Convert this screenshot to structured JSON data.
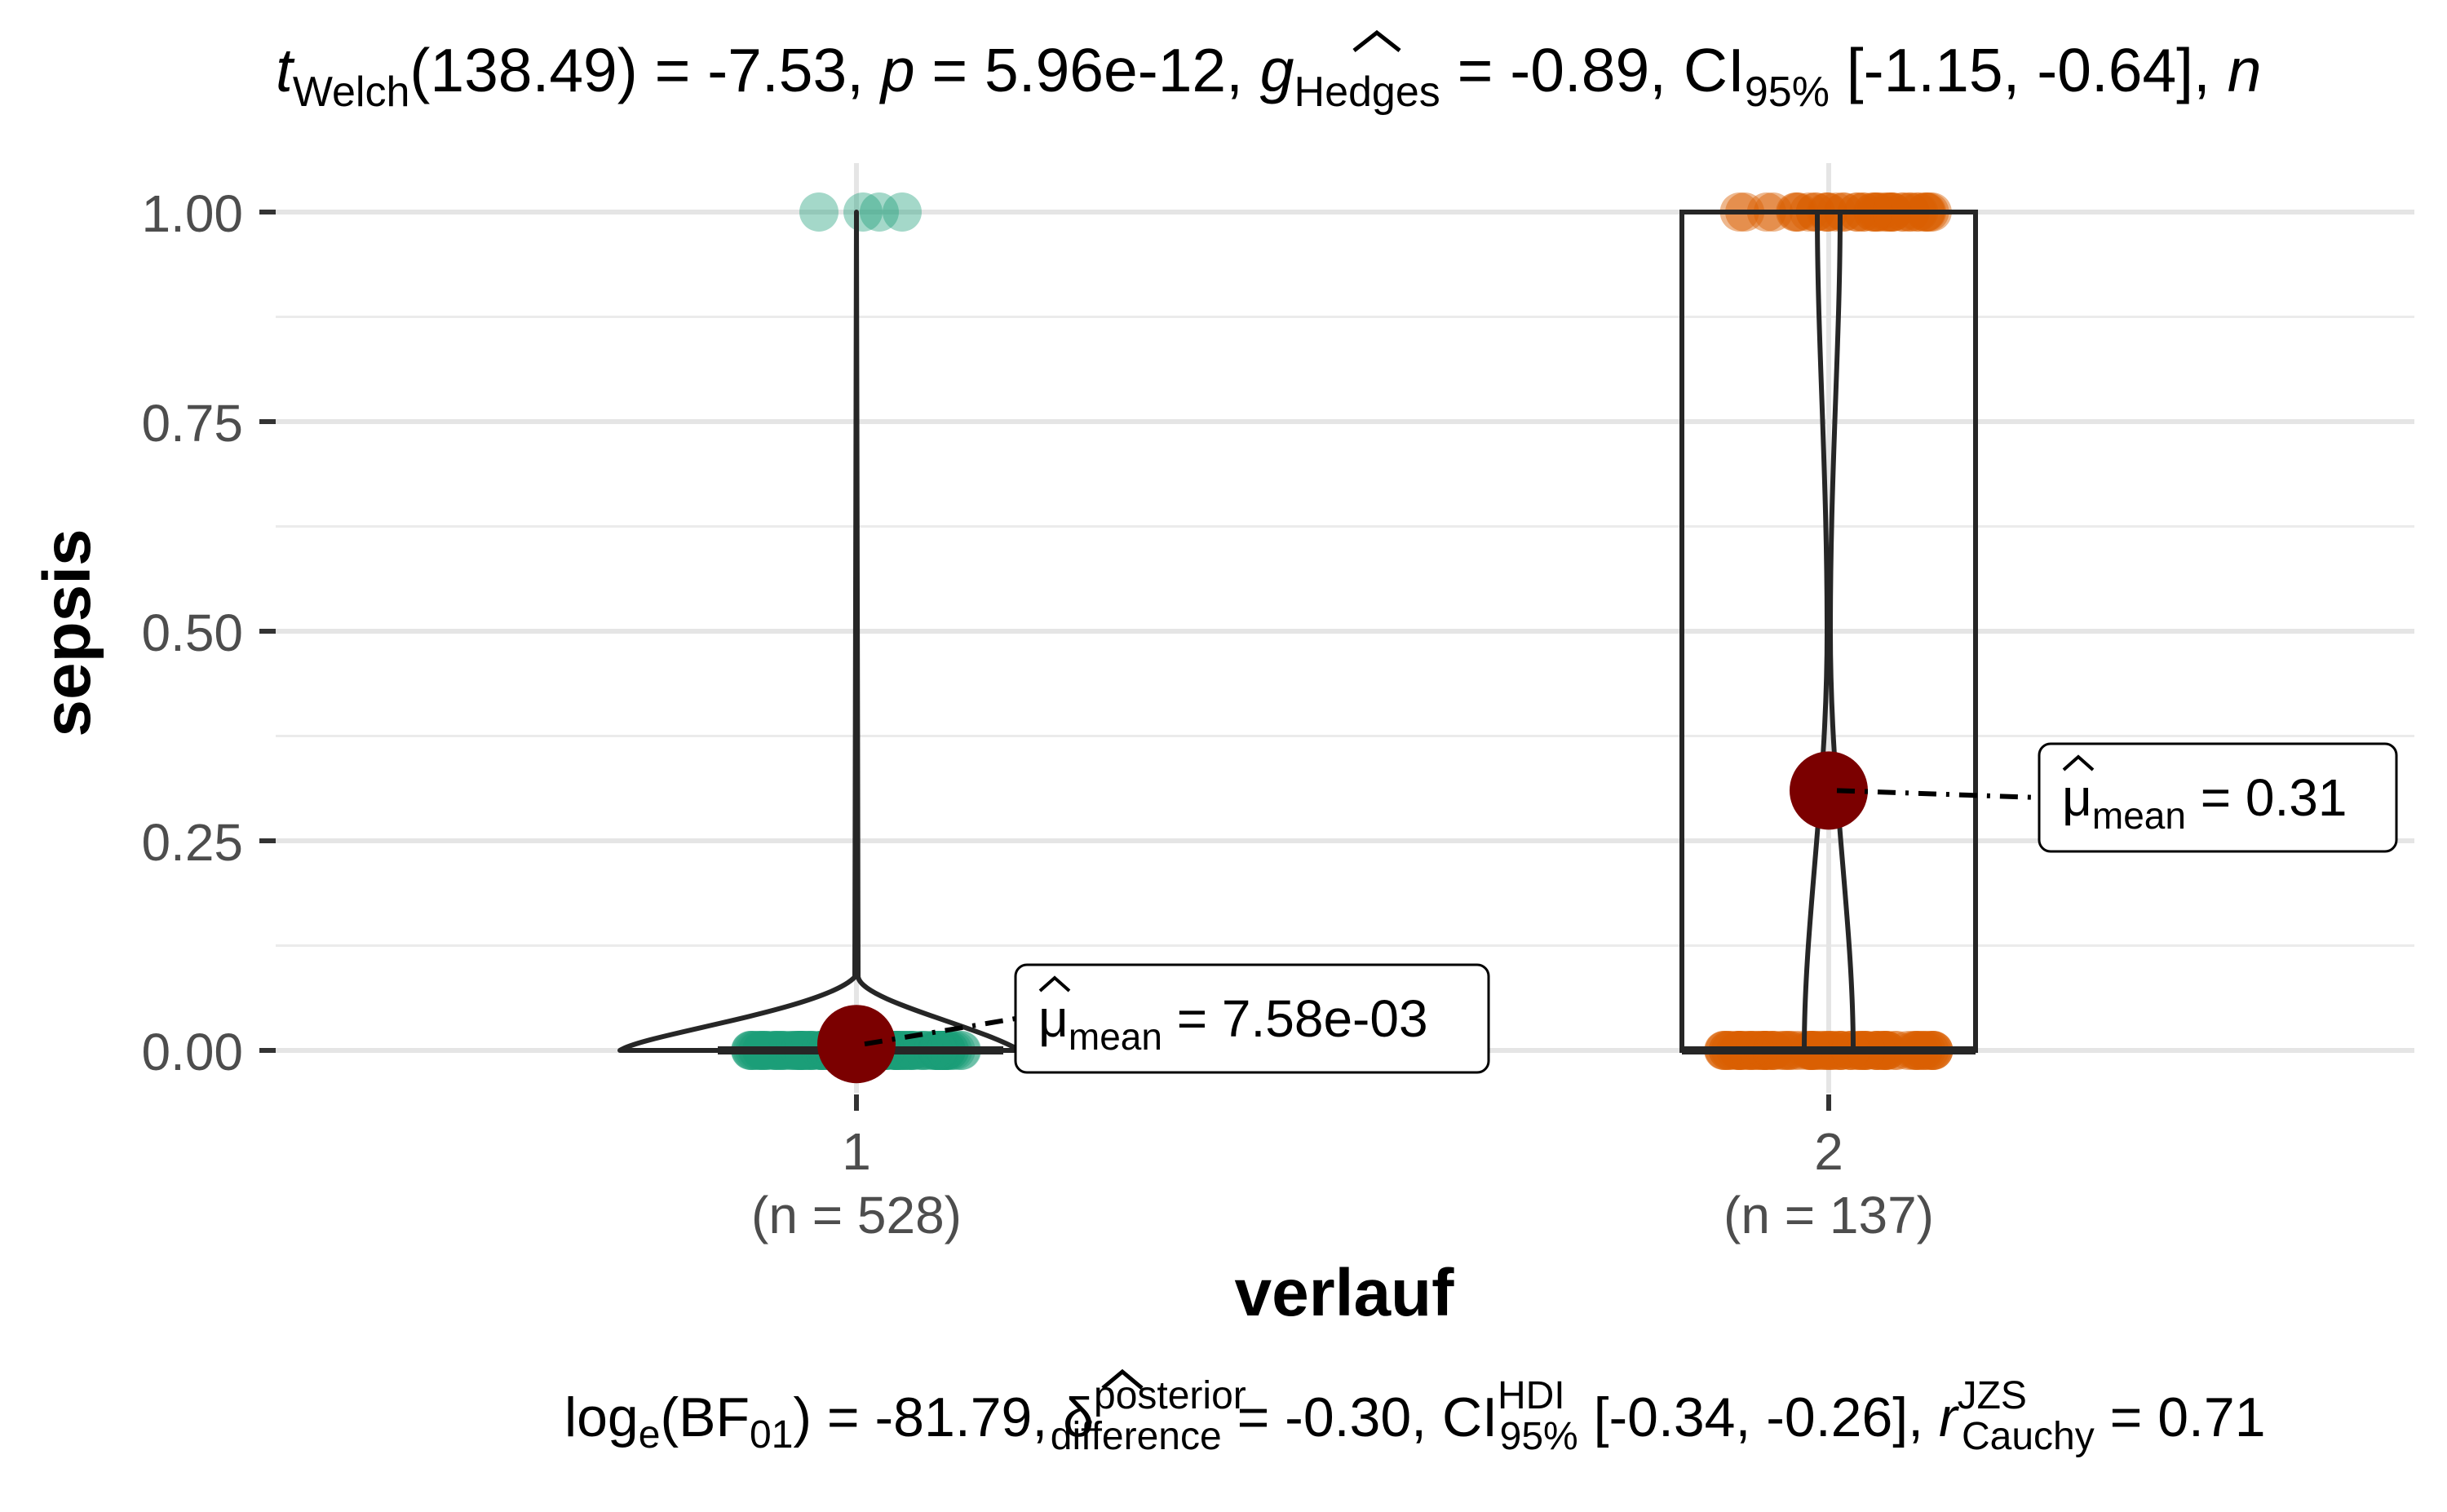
{
  "chart_data": {
    "type": "violin-box",
    "title": {
      "t_prefix": "t",
      "t_sub": "Welch",
      "t_text": "(138.49) = -7.53, ",
      "p_prefix": "p",
      "p_text": " = 5.96e-12, ",
      "g_prefix": "g",
      "g_sub": "Hedges",
      "g_text": " = -0.89, CI",
      "ci_sub": "95%",
      "ci_text": " [-1.15, -0.64], ",
      "n_prefix": "n"
    },
    "subtitle": {
      "log_prefix": "log",
      "log_sub": "e",
      "bf_text": "(BF",
      "bf_sub": "01",
      "bf_text2": ") = -81.79, ",
      "delta": "δ",
      "delta_sup": "posterior",
      "delta_sub": "difference",
      "delta_text": " = -0.30, CI",
      "ci_sup": "HDI",
      "ci_sub": "95%",
      "ci_text": " [-0.34, -0.26], ",
      "r_prefix": "r",
      "r_sup": "JZS",
      "r_sub": "Cauchy",
      "r_text": " = 0.71"
    },
    "xlabel": "verlauf",
    "ylabel": "sepsis",
    "ylim": [
      -0.05,
      1.05
    ],
    "yticks": [
      0.0,
      0.25,
      0.5,
      0.75,
      1.0
    ],
    "ytick_labels": [
      "0.00",
      "0.25",
      "0.50",
      "0.75",
      "1.00"
    ],
    "categories": [
      "1",
      "2"
    ],
    "category_n_labels": [
      "(n = 528)",
      "(n = 137)"
    ],
    "groups": [
      {
        "name": "1",
        "n": 528,
        "mean": 0.00758,
        "mean_label_symbol": "μ",
        "mean_label_sub": "mean",
        "mean_label_text": " = 7.58e-03",
        "color": "#1B9E77",
        "box": {
          "q1": 0.0,
          "median": 0.0,
          "q3": 0.0
        }
      },
      {
        "name": "2",
        "n": 137,
        "mean": 0.31,
        "mean_label_symbol": "μ",
        "mean_label_sub": "mean",
        "mean_label_text": " = 0.31",
        "color": "#D95F02",
        "box": {
          "q1": 0.0,
          "median": 0.0,
          "q3": 1.0
        }
      }
    ],
    "mean_point_color": "#7B0000",
    "grid": true
  }
}
